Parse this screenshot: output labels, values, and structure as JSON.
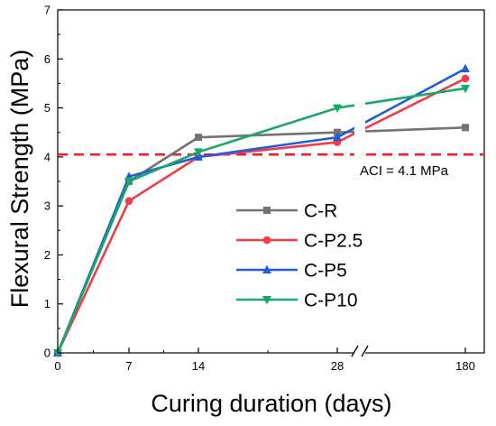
{
  "chart_data": {
    "type": "line",
    "xlabel": "Curing duration (days)",
    "ylabel": "Flexural Strength (MPa)",
    "x_categories": [
      "0",
      "7",
      "14",
      "28",
      "180"
    ],
    "ylim": [
      0,
      7
    ],
    "yticks": [
      "0",
      "1",
      "2",
      "3",
      "4",
      "5",
      "6",
      "7"
    ],
    "x_axis_break": "between 28 and 180",
    "grid": false,
    "legend_position": "lower-right",
    "series": [
      {
        "name": "C-R",
        "color": "#737373",
        "marker": "square",
        "values": [
          0,
          3.5,
          4.4,
          4.5,
          4.6
        ]
      },
      {
        "name": "C-P2.5",
        "color": "#f03c4a",
        "marker": "circle",
        "values": [
          0,
          3.1,
          4.0,
          4.3,
          5.6
        ]
      },
      {
        "name": "C-P5",
        "color": "#1f5fd8",
        "marker": "triangle-up",
        "values": [
          0,
          3.6,
          4.0,
          4.4,
          5.8
        ]
      },
      {
        "name": "C-P10",
        "color": "#17a86a",
        "marker": "triangle-down",
        "values": [
          0,
          3.5,
          4.1,
          5.0,
          5.4
        ]
      }
    ],
    "reference_line": {
      "label": "ACI = 4.1 MPa",
      "value": 4.05,
      "color": "#e8202a",
      "style": "dashed"
    }
  }
}
